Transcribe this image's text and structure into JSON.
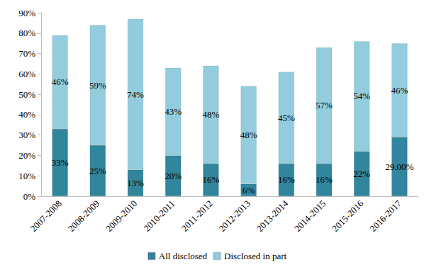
{
  "chart_data": {
    "type": "bar",
    "stacked": true,
    "data_labels": true,
    "legend": "bottom",
    "grid": false,
    "categories": [
      "2007-2008",
      "2008-2009",
      "2009-2010",
      "2010-2011",
      "2011-2012",
      "2012-2013",
      "2013-2014",
      "2014-2015",
      "2015-2016",
      "2016-2017"
    ],
    "series": [
      {
        "name": "All disclosed",
        "color": "#31859c",
        "values": [
          33,
          25,
          13,
          20,
          16,
          6,
          16,
          16,
          22,
          29
        ],
        "value_labels": [
          "33%",
          "25%",
          "13%",
          "20%",
          "16%",
          "6%",
          "16%",
          "16%",
          "22%",
          "29.00%"
        ]
      },
      {
        "name": "Disclosed in part",
        "color": "#93cddd",
        "values": [
          46,
          59,
          74,
          43,
          48,
          48,
          45,
          57,
          54,
          46
        ],
        "value_labels": [
          "46%",
          "59%",
          "74%",
          "43%",
          "48%",
          "48%",
          "45%",
          "57%",
          "54%",
          "46%"
        ]
      }
    ],
    "ylim": [
      0,
      90
    ],
    "yticks": [
      {
        "value": 0,
        "label": "0%"
      },
      {
        "value": 10,
        "label": "10%"
      },
      {
        "value": 20,
        "label": "20%"
      },
      {
        "value": 30,
        "label": "30%"
      },
      {
        "value": 40,
        "label": "40%"
      },
      {
        "value": 50,
        "label": "50%"
      },
      {
        "value": 60,
        "label": "60%"
      },
      {
        "value": 70,
        "label": "70%"
      },
      {
        "value": 80,
        "label": "80%"
      },
      {
        "value": 90,
        "label": "90%"
      }
    ]
  }
}
